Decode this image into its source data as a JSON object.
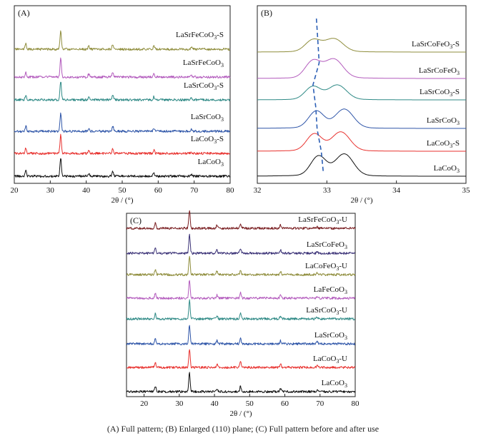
{
  "caption": "(A) Full pattern; (B) Enlarged (110) plane; (C) Full pattern before and after use",
  "colors": {
    "black": "#111111",
    "red": "#e8322f",
    "blue": "#2e55a8",
    "teal": "#2f8a86",
    "magenta": "#b35bbd",
    "olive": "#8f8d3c",
    "dark_blue": "#3b3277",
    "dark_red": "#7a1f22",
    "dashed_guide": "#2c5fb5"
  },
  "chart_data": [
    {
      "panel": "(A)",
      "type": "line",
      "xlabel": "2θ / (°)",
      "xlim": [
        20,
        80
      ],
      "xticks": [
        20,
        30,
        40,
        50,
        60,
        70,
        80
      ],
      "y_axis": "stacked intensity (no scale)",
      "peaks_2theta": [
        23.2,
        32.9,
        40.7,
        47.4,
        58.8,
        69.2
      ],
      "series": [
        {
          "name": "LaSrFeCoO3-S",
          "label_main": "LaSrFeCoO",
          "label_sub": "3",
          "label_suffix": "-S",
          "color": "#8f8d3c"
        },
        {
          "name": "LaSrFeCoO3",
          "label_main": "LaSrFeCoO",
          "label_sub": "3",
          "label_suffix": "",
          "color": "#b35bbd"
        },
        {
          "name": "LaSrCoO3-S",
          "label_main": "LaSrCoO",
          "label_sub": "3",
          "label_suffix": "-S",
          "color": "#2f8a86"
        },
        {
          "name": "LaSrCoO3",
          "label_main": "LaSrCoO",
          "label_sub": "3",
          "label_suffix": "",
          "color": "#2e55a8"
        },
        {
          "name": "LaCoO3-S",
          "label_main": "LaCoO",
          "label_sub": "3",
          "label_suffix": "-S",
          "color": "#e8322f"
        },
        {
          "name": "LaCoO3",
          "label_main": "LaCoO",
          "label_sub": "3",
          "label_suffix": "",
          "color": "#111111"
        }
      ]
    },
    {
      "panel": "(B)",
      "type": "line",
      "xlabel": "2θ / (°)",
      "xlim": [
        32,
        35
      ],
      "xticks": [
        32,
        33,
        34,
        35
      ],
      "y_axis": "stacked intensity (no scale)",
      "series": [
        {
          "name": "LaSrCoFeO3-S",
          "label_main": "LaSrCoFeO",
          "label_sub": "3",
          "label_suffix": "-S",
          "color": "#8f8d3c",
          "peaks": [
            32.8,
            33.1
          ]
        },
        {
          "name": "LaSrCoFeO3",
          "label_main": "LaSrCoFeO",
          "label_sub": "3",
          "label_suffix": "",
          "color": "#b35bbd",
          "peaks": [
            32.8,
            33.1
          ]
        },
        {
          "name": "LaSrCoO3-S",
          "label_main": "LaSrCoO",
          "label_sub": "3",
          "label_suffix": "-S",
          "color": "#2f8a86",
          "peaks": [
            32.8,
            33.15
          ]
        },
        {
          "name": "LaSrCoO3",
          "label_main": "LaSrCoO",
          "label_sub": "3",
          "label_suffix": "",
          "color": "#2e55a8",
          "peaks": [
            32.85,
            33.25
          ]
        },
        {
          "name": "LaCoO3-S",
          "label_main": "LaCoO",
          "label_sub": "3",
          "label_suffix": "-S",
          "color": "#e8322f",
          "peaks": [
            32.82,
            33.2
          ]
        },
        {
          "name": "LaCoO3",
          "label_main": "LaCoO",
          "label_sub": "3",
          "label_suffix": "",
          "color": "#111111",
          "peaks": [
            32.88,
            33.25
          ]
        }
      ],
      "guide_line_2theta": [
        32.85,
        32.87,
        32.89,
        32.8,
        32.84,
        32.86,
        32.92,
        32.95
      ]
    },
    {
      "panel": "(C)",
      "type": "line",
      "xlabel": "2θ / (°)",
      "xlim": [
        15,
        80
      ],
      "xticks": [
        20,
        30,
        40,
        50,
        60,
        70,
        80
      ],
      "y_axis": "stacked intensity (no scale)",
      "peaks_2theta": [
        23.2,
        32.9,
        40.7,
        47.4,
        58.8,
        69.2
      ],
      "series": [
        {
          "name": "LaSrFeCoO3-U",
          "label_main": "LaSrFeCoO",
          "label_sub": "3",
          "label_suffix": "-U",
          "color": "#7a1f22"
        },
        {
          "name": "LaSrCoFeO3",
          "label_main": "LaSrCoFeO",
          "label_sub": "3",
          "label_suffix": "",
          "color": "#3b3277"
        },
        {
          "name": "LaCoFeO3-U",
          "label_main": "LaCoFeO",
          "label_sub": "3",
          "label_suffix": "-U",
          "color": "#8f8d3c"
        },
        {
          "name": "LaFeCoO3",
          "label_main": "LaFeCoO",
          "label_sub": "3",
          "label_suffix": "",
          "color": "#b35bbd"
        },
        {
          "name": "LaSrCoO3-U",
          "label_main": "LaSrCoO",
          "label_sub": "3",
          "label_suffix": "-U",
          "color": "#2f8a86"
        },
        {
          "name": "LaSrCoO3",
          "label_main": "LaSrCoO",
          "label_sub": "3",
          "label_suffix": "",
          "color": "#2e55a8"
        },
        {
          "name": "LaCoO3-U",
          "label_main": "LaCoO",
          "label_sub": "3",
          "label_suffix": "-U",
          "color": "#e8322f"
        },
        {
          "name": "LaCoO3",
          "label_main": "LaCoO",
          "label_sub": "3",
          "label_suffix": "",
          "color": "#111111"
        }
      ]
    }
  ]
}
